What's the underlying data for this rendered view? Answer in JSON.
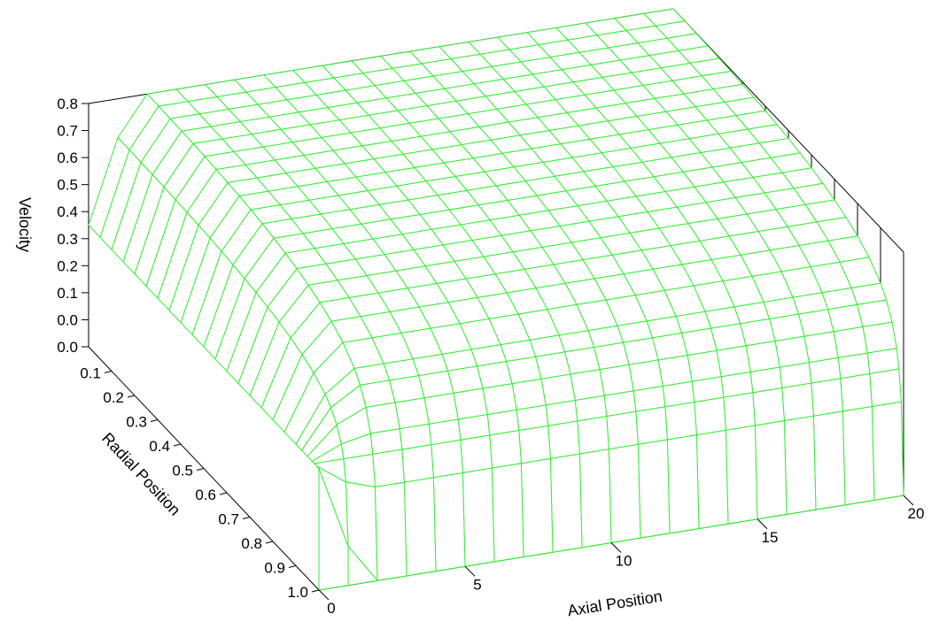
{
  "chart_data": {
    "type": "surface3d",
    "title": "",
    "xlabel": "Axial Position",
    "ylabel": "Radial Position",
    "zlabel": "Velocity",
    "x_ticks": [
      "0",
      "5",
      "10",
      "15",
      "20"
    ],
    "y_ticks": [
      "0.1",
      "0.2",
      "0.3",
      "0.4",
      "0.5",
      "0.6",
      "0.7",
      "0.8",
      "0.9",
      "1.0"
    ],
    "z_ticks": [
      "0.0",
      "0.0",
      "0.1",
      "0.2",
      "0.3",
      "0.4",
      "0.5",
      "0.6",
      "0.7",
      "0.8"
    ],
    "xlim": [
      0,
      20
    ],
    "ylim": [
      0,
      1
    ],
    "zlim": [
      0,
      0.8
    ],
    "grid": true,
    "mesh_color": "#33ee33",
    "surface": {
      "x": [
        0,
        1,
        2,
        3,
        4,
        5,
        6,
        7,
        8,
        9,
        10,
        11,
        12,
        13,
        14,
        15,
        16,
        17,
        18,
        19,
        20
      ],
      "radial_profile": {
        "y": [
          0,
          0.05,
          0.1,
          0.15,
          0.2,
          0.25,
          0.3,
          0.35,
          0.4,
          0.45,
          0.5,
          0.55,
          0.6,
          0.65,
          0.7,
          0.75,
          0.8,
          0.85,
          0.9,
          0.925,
          0.95,
          0.97,
          0.98,
          0.99,
          1.0
        ],
        "velocity": [
          0.8,
          0.8,
          0.799,
          0.798,
          0.797,
          0.795,
          0.792,
          0.789,
          0.785,
          0.78,
          0.774,
          0.766,
          0.757,
          0.746,
          0.732,
          0.715,
          0.693,
          0.663,
          0.618,
          0.583,
          0.53,
          0.46,
          0.4,
          0.3,
          0.0
        ]
      },
      "inlet_velocity": 0.4
    }
  }
}
